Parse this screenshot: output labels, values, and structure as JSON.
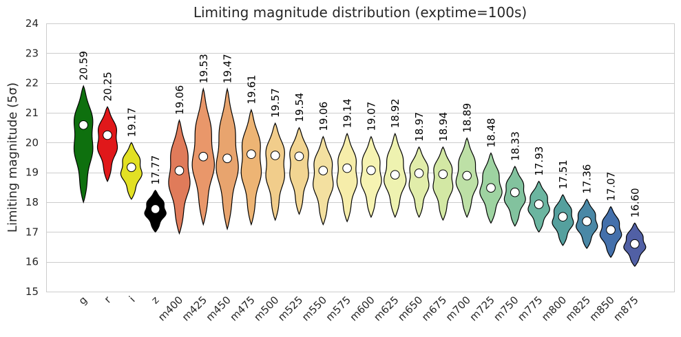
{
  "chart_data": {
    "type": "violin",
    "title": "Limiting magnitude distribution (exptime=100s)",
    "xlabel": "",
    "ylabel": "Limiting magnitude (5σ)",
    "ylim": [
      15,
      24
    ],
    "yticks": [
      15,
      16,
      17,
      18,
      19,
      20,
      21,
      22,
      23,
      24
    ],
    "grid": true,
    "categories": [
      "g",
      "r",
      "i",
      "z",
      "m400",
      "m425",
      "m450",
      "m475",
      "m500",
      "m525",
      "m550",
      "m575",
      "m600",
      "m625",
      "m650",
      "m675",
      "m700",
      "m725",
      "m750",
      "m775",
      "m800",
      "m825",
      "m850",
      "m875"
    ],
    "medians": [
      20.59,
      20.25,
      19.17,
      17.77,
      19.06,
      19.53,
      19.47,
      19.61,
      19.57,
      19.54,
      19.06,
      19.14,
      19.07,
      18.92,
      18.97,
      18.94,
      18.89,
      18.48,
      18.33,
      17.93,
      17.51,
      17.36,
      17.07,
      16.6
    ],
    "median_labels": [
      "20.59",
      "20.25",
      "19.17",
      "17.77",
      "19.06",
      "19.53",
      "19.47",
      "19.61",
      "19.57",
      "19.54",
      "19.06",
      "19.14",
      "19.07",
      "18.92",
      "18.97",
      "18.94",
      "18.89",
      "18.48",
      "18.33",
      "17.93",
      "17.51",
      "17.36",
      "17.07",
      "16.60"
    ],
    "mins": [
      18.0,
      18.7,
      18.1,
      17.0,
      16.95,
      17.25,
      17.1,
      17.25,
      17.4,
      17.6,
      17.25,
      17.35,
      17.5,
      17.5,
      17.5,
      17.4,
      17.5,
      17.3,
      17.2,
      17.0,
      16.55,
      16.45,
      16.15,
      15.85
    ],
    "maxs": [
      21.9,
      21.2,
      20.0,
      18.4,
      20.75,
      21.8,
      21.8,
      21.1,
      20.65,
      20.5,
      20.2,
      20.3,
      20.2,
      20.3,
      19.85,
      19.85,
      20.15,
      19.65,
      19.2,
      18.7,
      18.25,
      18.1,
      17.85,
      17.3
    ],
    "colors": [
      "#0e700e",
      "#e0181a",
      "#e2e024",
      "#000000",
      "#e07b5a",
      "#e9976a",
      "#e8a46e",
      "#edb474",
      "#f1cd8b",
      "#f2d592",
      "#f3e0a0",
      "#f6edaa",
      "#f6f3b2",
      "#eef2b0",
      "#e1edaa",
      "#d3e8a4",
      "#bde0a6",
      "#9ed3a1",
      "#82c29e",
      "#6bb5a0",
      "#55a09e",
      "#4a88a6",
      "#4470ab",
      "#5160a5"
    ]
  }
}
